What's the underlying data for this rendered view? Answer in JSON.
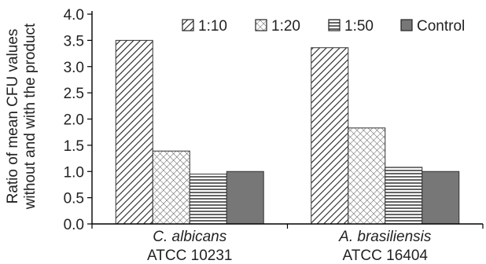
{
  "chart_data": {
    "type": "bar",
    "ylabel_lines": [
      "Ratio of mean CFU values",
      "without and with the product"
    ],
    "ylim": [
      0,
      4.0
    ],
    "yticks": [
      "0.0",
      "0.5",
      "1.0",
      "1.5",
      "2.0",
      "2.5",
      "3.0",
      "3.5",
      "4.0"
    ],
    "categories": [
      {
        "name": "C. albicans",
        "strain": "ATCC 10231"
      },
      {
        "name": "A. brasiliensis",
        "strain": "ATCC 16404"
      }
    ],
    "series": [
      {
        "name": "1:10",
        "values": [
          3.5,
          3.36
        ],
        "pattern": "diag-hatch"
      },
      {
        "name": "1:20",
        "values": [
          1.39,
          1.83
        ],
        "pattern": "crosshatch"
      },
      {
        "name": "1:50",
        "values": [
          0.95,
          1.08
        ],
        "pattern": "horizontal-lines"
      },
      {
        "name": "Control",
        "values": [
          1.0,
          1.0
        ],
        "pattern": "solid-gray"
      }
    ],
    "legend_position": "top-right",
    "grid": false,
    "colors": {
      "control_fill": "#777777",
      "axis": "#000000"
    }
  }
}
